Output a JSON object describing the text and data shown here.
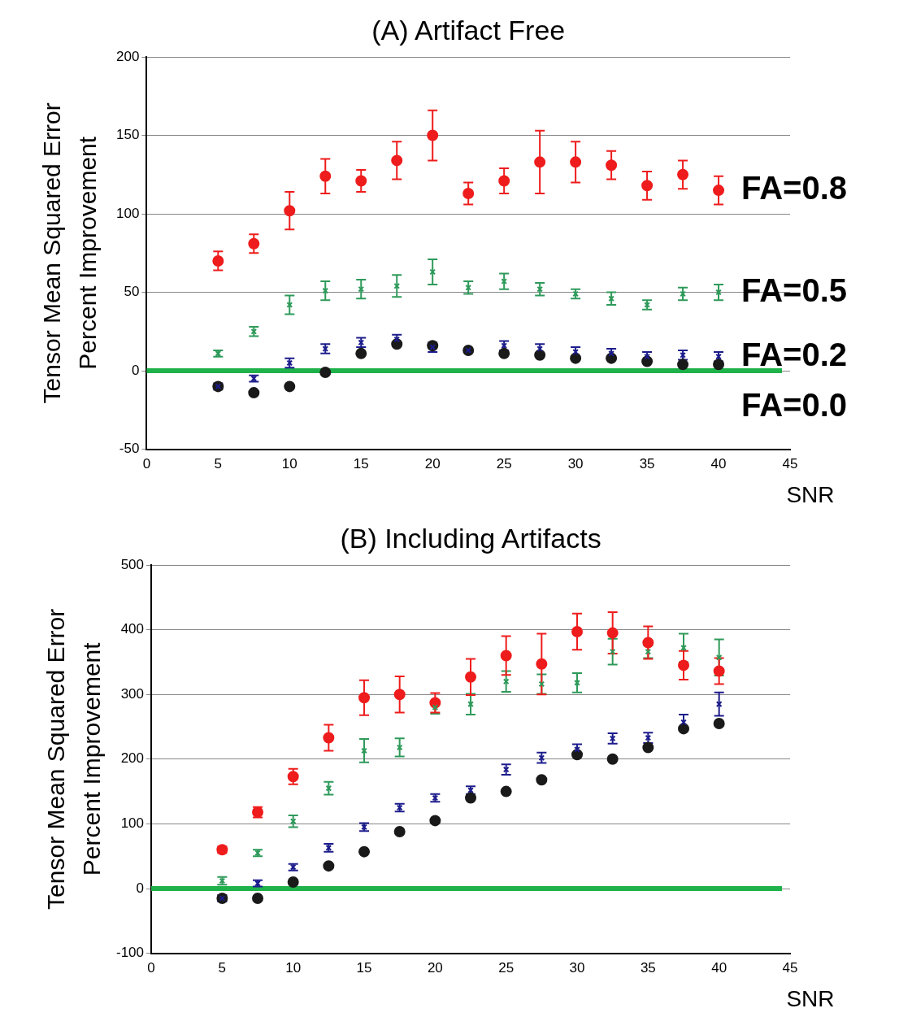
{
  "chart_data": [
    {
      "type": "scatter",
      "title": "(A) Artifact Free",
      "xlabel": "SNR",
      "ylabel": "Tensor Mean Squared Error\nPercent Improvement",
      "x": [
        5,
        7.5,
        10,
        12.5,
        15,
        17.5,
        20,
        22.5,
        25,
        27.5,
        30,
        32.5,
        35,
        37.5,
        40
      ],
      "xlim": [
        0,
        45
      ],
      "xticks": [
        0,
        5,
        10,
        15,
        20,
        25,
        30,
        35,
        40,
        45
      ],
      "ylim": [
        -50,
        200
      ],
      "yticks": [
        -50,
        0,
        50,
        100,
        150,
        200
      ],
      "grid": "y",
      "ref_lines": [
        {
          "axis": "y",
          "value": 0,
          "color": "#1fb24a"
        }
      ],
      "series": [
        {
          "name": "FA=0.8",
          "color": "#ee1c1c",
          "marker": "circle",
          "values": [
            70,
            81,
            102,
            124,
            121,
            134,
            150,
            113,
            121,
            133,
            133,
            131,
            118,
            125,
            115
          ],
          "errors": [
            6,
            6,
            12,
            11,
            7,
            12,
            16,
            7,
            8,
            20,
            13,
            9,
            9,
            9,
            9
          ]
        },
        {
          "name": "FA=0.5",
          "color": "#2e9a5a",
          "marker": "cross",
          "values": [
            11,
            25,
            42,
            51,
            52,
            54,
            63,
            53,
            57,
            52,
            49,
            46,
            42,
            49,
            50
          ],
          "errors": [
            2,
            3,
            6,
            6,
            6,
            7,
            8,
            4,
            5,
            4,
            3,
            4,
            3,
            4,
            5
          ]
        },
        {
          "name": "FA=0.2",
          "color": "#1c1c8c",
          "marker": "cross",
          "values": [
            -10,
            -5,
            5,
            14,
            18,
            20,
            15,
            13,
            16,
            14,
            12,
            11,
            9,
            10,
            9
          ],
          "errors": [
            2,
            2,
            3,
            3,
            3,
            3,
            3,
            null,
            3,
            3,
            3,
            3,
            3,
            3,
            3
          ]
        },
        {
          "name": "FA=0.0",
          "color": "#1a1a1a",
          "marker": "circle",
          "values": [
            -10,
            -14,
            -10,
            -1,
            11,
            17,
            16,
            13,
            11,
            10,
            8,
            8,
            6,
            4,
            4
          ]
        }
      ]
    },
    {
      "type": "scatter",
      "title": "(B) Including Artifacts",
      "xlabel": "SNR",
      "ylabel": "Tensor Mean Squared Error\nPercent Improvement",
      "x": [
        5,
        7.5,
        10,
        12.5,
        15,
        17.5,
        20,
        22.5,
        25,
        27.5,
        30,
        32.5,
        35,
        37.5,
        40
      ],
      "xlim": [
        0,
        45
      ],
      "xticks": [
        0,
        5,
        10,
        15,
        20,
        25,
        30,
        35,
        40,
        45
      ],
      "ylim": [
        -100,
        500
      ],
      "yticks": [
        -100,
        0,
        100,
        200,
        300,
        400,
        500
      ],
      "grid": "y",
      "ref_lines": [
        {
          "axis": "y",
          "value": 0,
          "color": "#1fb24a"
        }
      ],
      "series": [
        {
          "color": "#2e9a5a",
          "marker": "cross",
          "values": [
            12,
            55,
            104,
            155,
            213,
            218,
            280,
            285,
            320,
            316,
            318,
            366,
            366,
            372,
            357
          ],
          "errors": [
            6,
            5,
            9,
            10,
            18,
            14,
            10,
            16,
            16,
            15,
            15,
            20,
            10,
            22,
            28
          ]
        },
        {
          "color": "#ee1c1c",
          "marker": "circle",
          "values": [
            60,
            118,
            173,
            233,
            295,
            300,
            287,
            327,
            360,
            347,
            397,
            395,
            380,
            345,
            336
          ],
          "errors": [
            5,
            8,
            12,
            20,
            27,
            28,
            15,
            28,
            30,
            47,
            28,
            32,
            25,
            22,
            20
          ]
        },
        {
          "color": "#1c1c8c",
          "marker": "cross",
          "values": [
            -15,
            8,
            33,
            63,
            95,
            125,
            140,
            152,
            184,
            202,
            215,
            232,
            233,
            257,
            285
          ],
          "errors": [
            5,
            5,
            5,
            6,
            6,
            6,
            6,
            6,
            8,
            8,
            8,
            8,
            8,
            12,
            18
          ]
        },
        {
          "color": "#1a1a1a",
          "marker": "circle",
          "values": [
            -15,
            -15,
            10,
            35,
            57,
            88,
            105,
            140,
            150,
            168,
            207,
            200,
            218,
            247,
            255
          ]
        }
      ]
    }
  ]
}
